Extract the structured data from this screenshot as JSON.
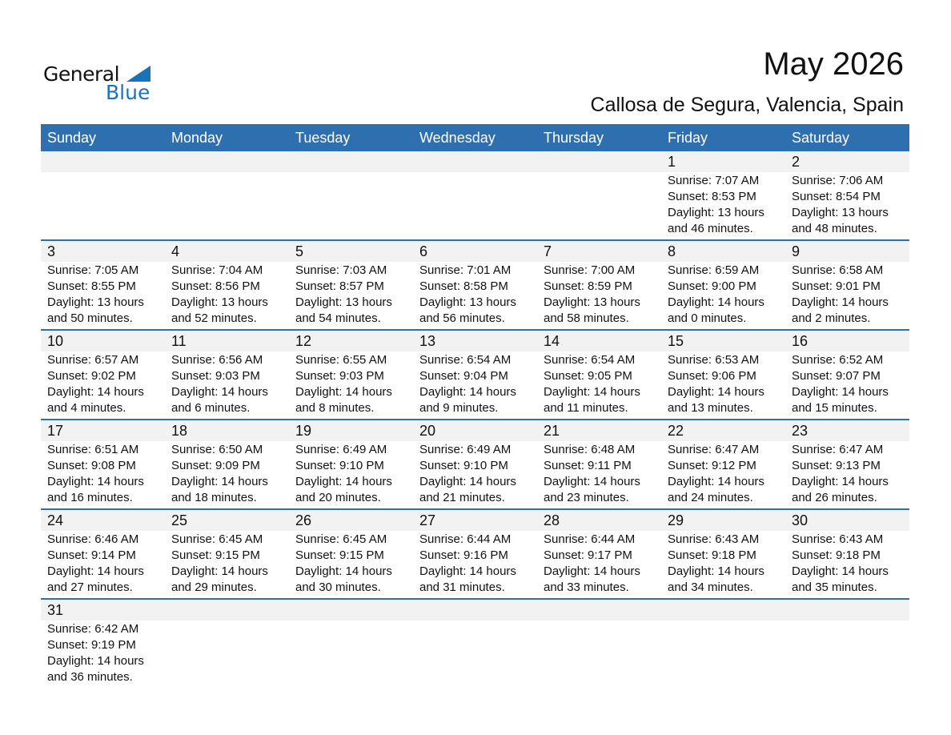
{
  "logo": {
    "general": "General",
    "blue": "Blue"
  },
  "title": "May 2026",
  "location": "Callosa de Segura, Valencia, Spain",
  "colors": {
    "header": "#2E6FB0",
    "band": "#f2f2f2",
    "logo_blue": "#1a73b8"
  },
  "weekdays": [
    "Sunday",
    "Monday",
    "Tuesday",
    "Wednesday",
    "Thursday",
    "Friday",
    "Saturday"
  ],
  "weeks": [
    [
      null,
      null,
      null,
      null,
      null,
      {
        "day": "1",
        "sunrise": "Sunrise: 7:07 AM",
        "sunset": "Sunset: 8:53 PM",
        "daylight": "Daylight: 13 hours",
        "minutes": "and 46 minutes."
      },
      {
        "day": "2",
        "sunrise": "Sunrise: 7:06 AM",
        "sunset": "Sunset: 8:54 PM",
        "daylight": "Daylight: 13 hours",
        "minutes": "and 48 minutes."
      }
    ],
    [
      {
        "day": "3",
        "sunrise": "Sunrise: 7:05 AM",
        "sunset": "Sunset: 8:55 PM",
        "daylight": "Daylight: 13 hours",
        "minutes": "and 50 minutes."
      },
      {
        "day": "4",
        "sunrise": "Sunrise: 7:04 AM",
        "sunset": "Sunset: 8:56 PM",
        "daylight": "Daylight: 13 hours",
        "minutes": "and 52 minutes."
      },
      {
        "day": "5",
        "sunrise": "Sunrise: 7:03 AM",
        "sunset": "Sunset: 8:57 PM",
        "daylight": "Daylight: 13 hours",
        "minutes": "and 54 minutes."
      },
      {
        "day": "6",
        "sunrise": "Sunrise: 7:01 AM",
        "sunset": "Sunset: 8:58 PM",
        "daylight": "Daylight: 13 hours",
        "minutes": "and 56 minutes."
      },
      {
        "day": "7",
        "sunrise": "Sunrise: 7:00 AM",
        "sunset": "Sunset: 8:59 PM",
        "daylight": "Daylight: 13 hours",
        "minutes": "and 58 minutes."
      },
      {
        "day": "8",
        "sunrise": "Sunrise: 6:59 AM",
        "sunset": "Sunset: 9:00 PM",
        "daylight": "Daylight: 14 hours",
        "minutes": "and 0 minutes."
      },
      {
        "day": "9",
        "sunrise": "Sunrise: 6:58 AM",
        "sunset": "Sunset: 9:01 PM",
        "daylight": "Daylight: 14 hours",
        "minutes": "and 2 minutes."
      }
    ],
    [
      {
        "day": "10",
        "sunrise": "Sunrise: 6:57 AM",
        "sunset": "Sunset: 9:02 PM",
        "daylight": "Daylight: 14 hours",
        "minutes": "and 4 minutes."
      },
      {
        "day": "11",
        "sunrise": "Sunrise: 6:56 AM",
        "sunset": "Sunset: 9:03 PM",
        "daylight": "Daylight: 14 hours",
        "minutes": "and 6 minutes."
      },
      {
        "day": "12",
        "sunrise": "Sunrise: 6:55 AM",
        "sunset": "Sunset: 9:03 PM",
        "daylight": "Daylight: 14 hours",
        "minutes": "and 8 minutes."
      },
      {
        "day": "13",
        "sunrise": "Sunrise: 6:54 AM",
        "sunset": "Sunset: 9:04 PM",
        "daylight": "Daylight: 14 hours",
        "minutes": "and 9 minutes."
      },
      {
        "day": "14",
        "sunrise": "Sunrise: 6:54 AM",
        "sunset": "Sunset: 9:05 PM",
        "daylight": "Daylight: 14 hours",
        "minutes": "and 11 minutes."
      },
      {
        "day": "15",
        "sunrise": "Sunrise: 6:53 AM",
        "sunset": "Sunset: 9:06 PM",
        "daylight": "Daylight: 14 hours",
        "minutes": "and 13 minutes."
      },
      {
        "day": "16",
        "sunrise": "Sunrise: 6:52 AM",
        "sunset": "Sunset: 9:07 PM",
        "daylight": "Daylight: 14 hours",
        "minutes": "and 15 minutes."
      }
    ],
    [
      {
        "day": "17",
        "sunrise": "Sunrise: 6:51 AM",
        "sunset": "Sunset: 9:08 PM",
        "daylight": "Daylight: 14 hours",
        "minutes": "and 16 minutes."
      },
      {
        "day": "18",
        "sunrise": "Sunrise: 6:50 AM",
        "sunset": "Sunset: 9:09 PM",
        "daylight": "Daylight: 14 hours",
        "minutes": "and 18 minutes."
      },
      {
        "day": "19",
        "sunrise": "Sunrise: 6:49 AM",
        "sunset": "Sunset: 9:10 PM",
        "daylight": "Daylight: 14 hours",
        "minutes": "and 20 minutes."
      },
      {
        "day": "20",
        "sunrise": "Sunrise: 6:49 AM",
        "sunset": "Sunset: 9:10 PM",
        "daylight": "Daylight: 14 hours",
        "minutes": "and 21 minutes."
      },
      {
        "day": "21",
        "sunrise": "Sunrise: 6:48 AM",
        "sunset": "Sunset: 9:11 PM",
        "daylight": "Daylight: 14 hours",
        "minutes": "and 23 minutes."
      },
      {
        "day": "22",
        "sunrise": "Sunrise: 6:47 AM",
        "sunset": "Sunset: 9:12 PM",
        "daylight": "Daylight: 14 hours",
        "minutes": "and 24 minutes."
      },
      {
        "day": "23",
        "sunrise": "Sunrise: 6:47 AM",
        "sunset": "Sunset: 9:13 PM",
        "daylight": "Daylight: 14 hours",
        "minutes": "and 26 minutes."
      }
    ],
    [
      {
        "day": "24",
        "sunrise": "Sunrise: 6:46 AM",
        "sunset": "Sunset: 9:14 PM",
        "daylight": "Daylight: 14 hours",
        "minutes": "and 27 minutes."
      },
      {
        "day": "25",
        "sunrise": "Sunrise: 6:45 AM",
        "sunset": "Sunset: 9:15 PM",
        "daylight": "Daylight: 14 hours",
        "minutes": "and 29 minutes."
      },
      {
        "day": "26",
        "sunrise": "Sunrise: 6:45 AM",
        "sunset": "Sunset: 9:15 PM",
        "daylight": "Daylight: 14 hours",
        "minutes": "and 30 minutes."
      },
      {
        "day": "27",
        "sunrise": "Sunrise: 6:44 AM",
        "sunset": "Sunset: 9:16 PM",
        "daylight": "Daylight: 14 hours",
        "minutes": "and 31 minutes."
      },
      {
        "day": "28",
        "sunrise": "Sunrise: 6:44 AM",
        "sunset": "Sunset: 9:17 PM",
        "daylight": "Daylight: 14 hours",
        "minutes": "and 33 minutes."
      },
      {
        "day": "29",
        "sunrise": "Sunrise: 6:43 AM",
        "sunset": "Sunset: 9:18 PM",
        "daylight": "Daylight: 14 hours",
        "minutes": "and 34 minutes."
      },
      {
        "day": "30",
        "sunrise": "Sunrise: 6:43 AM",
        "sunset": "Sunset: 9:18 PM",
        "daylight": "Daylight: 14 hours",
        "minutes": "and 35 minutes."
      }
    ],
    [
      {
        "day": "31",
        "sunrise": "Sunrise: 6:42 AM",
        "sunset": "Sunset: 9:19 PM",
        "daylight": "Daylight: 14 hours",
        "minutes": "and 36 minutes."
      },
      null,
      null,
      null,
      null,
      null,
      null
    ]
  ]
}
